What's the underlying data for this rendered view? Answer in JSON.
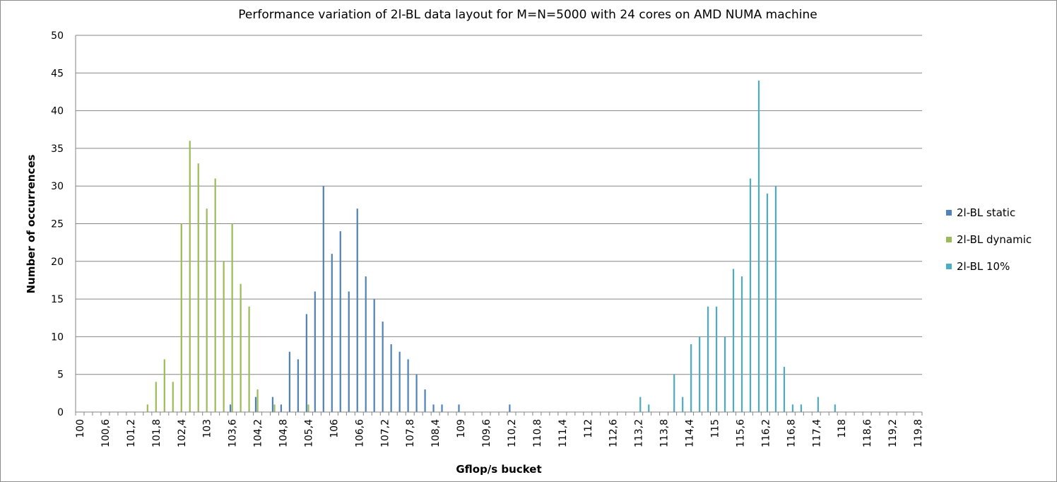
{
  "chart_data": {
    "type": "bar",
    "title": "Performance variation of 2l-BL data layout for M=N=5000 with 24 cores on AMD NUMA machine",
    "xlabel": "Gflop/s bucket",
    "ylabel": "Number of occurrences",
    "ylim": [
      0,
      50
    ],
    "yticks": [
      "0",
      "5",
      "10",
      "15",
      "20",
      "25",
      "30",
      "35",
      "40",
      "45",
      "50"
    ],
    "x_tick_labels": [
      "100",
      "100,6",
      "101,2",
      "101,8",
      "102,4",
      "103",
      "103,6",
      "104,2",
      "104,8",
      "105,4",
      "106",
      "106,6",
      "107,2",
      "107,8",
      "108,4",
      "109",
      "109,6",
      "110,2",
      "110,8",
      "111,4",
      "112",
      "112,6",
      "113,2",
      "113,8",
      "114,4",
      "115",
      "115,6",
      "116,2",
      "116,8",
      "117,4",
      "118",
      "118,6",
      "119,2",
      "119,8"
    ],
    "bucket_start": 100,
    "bucket_width": 0.2,
    "bucket_count": 100,
    "grid": true,
    "legend_position": "right",
    "series": [
      {
        "name": "2l-BL static",
        "color": "#4f81bd",
        "points": [
          {
            "x": 103.6,
            "y": 1
          },
          {
            "x": 104.2,
            "y": 2
          },
          {
            "x": 104.6,
            "y": 2
          },
          {
            "x": 104.8,
            "y": 1
          },
          {
            "x": 105.0,
            "y": 8
          },
          {
            "x": 105.2,
            "y": 7
          },
          {
            "x": 105.4,
            "y": 13
          },
          {
            "x": 105.6,
            "y": 16
          },
          {
            "x": 105.8,
            "y": 30
          },
          {
            "x": 106.0,
            "y": 21
          },
          {
            "x": 106.2,
            "y": 24
          },
          {
            "x": 106.4,
            "y": 16
          },
          {
            "x": 106.6,
            "y": 27
          },
          {
            "x": 106.8,
            "y": 18
          },
          {
            "x": 107.0,
            "y": 15
          },
          {
            "x": 107.2,
            "y": 12
          },
          {
            "x": 107.4,
            "y": 9
          },
          {
            "x": 107.6,
            "y": 8
          },
          {
            "x": 107.8,
            "y": 7
          },
          {
            "x": 108.0,
            "y": 5
          },
          {
            "x": 108.2,
            "y": 3
          },
          {
            "x": 108.4,
            "y": 1
          },
          {
            "x": 108.6,
            "y": 1
          },
          {
            "x": 109.0,
            "y": 1
          },
          {
            "x": 110.2,
            "y": 1
          }
        ]
      },
      {
        "name": "2l-BL dynamic",
        "color": "#9bbb59",
        "points": [
          {
            "x": 101.6,
            "y": 1
          },
          {
            "x": 101.8,
            "y": 4
          },
          {
            "x": 102.0,
            "y": 7
          },
          {
            "x": 102.2,
            "y": 4
          },
          {
            "x": 102.4,
            "y": 25
          },
          {
            "x": 102.6,
            "y": 36
          },
          {
            "x": 102.8,
            "y": 33
          },
          {
            "x": 103.0,
            "y": 27
          },
          {
            "x": 103.2,
            "y": 31
          },
          {
            "x": 103.4,
            "y": 20
          },
          {
            "x": 103.6,
            "y": 25
          },
          {
            "x": 103.8,
            "y": 17
          },
          {
            "x": 104.0,
            "y": 14
          },
          {
            "x": 104.2,
            "y": 3
          },
          {
            "x": 104.6,
            "y": 1
          },
          {
            "x": 105.4,
            "y": 1
          }
        ]
      },
      {
        "name": "2l-BL 10%",
        "color": "#4bacc6",
        "points": [
          {
            "x": 113.2,
            "y": 2
          },
          {
            "x": 113.4,
            "y": 1
          },
          {
            "x": 114.0,
            "y": 5
          },
          {
            "x": 114.2,
            "y": 2
          },
          {
            "x": 114.4,
            "y": 9
          },
          {
            "x": 114.6,
            "y": 10
          },
          {
            "x": 114.8,
            "y": 14
          },
          {
            "x": 115.0,
            "y": 14
          },
          {
            "x": 115.2,
            "y": 10
          },
          {
            "x": 115.4,
            "y": 19
          },
          {
            "x": 115.6,
            "y": 18
          },
          {
            "x": 115.8,
            "y": 31
          },
          {
            "x": 116.0,
            "y": 44
          },
          {
            "x": 116.2,
            "y": 29
          },
          {
            "x": 116.4,
            "y": 30
          },
          {
            "x": 116.6,
            "y": 6
          },
          {
            "x": 116.8,
            "y": 1
          },
          {
            "x": 117.0,
            "y": 1
          },
          {
            "x": 117.4,
            "y": 2
          },
          {
            "x": 117.8,
            "y": 1
          }
        ]
      }
    ]
  }
}
